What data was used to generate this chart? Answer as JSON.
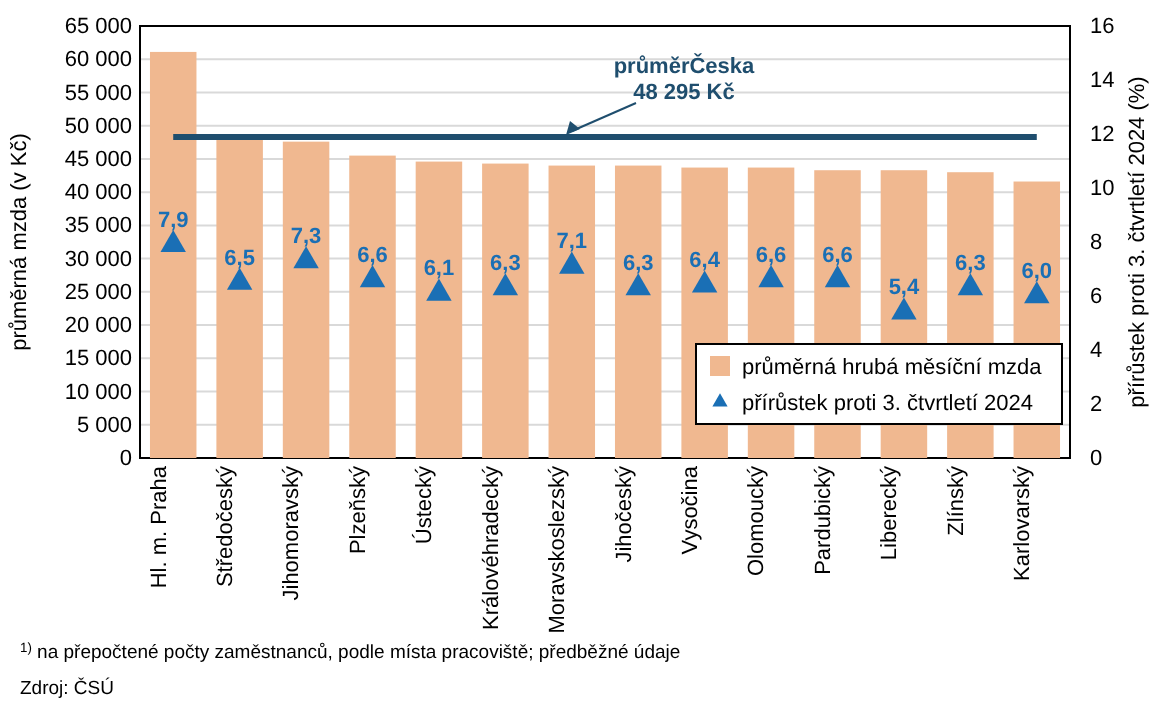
{
  "chart_data": {
    "type": "bar",
    "ylabel": "průměrná mzda (v Kč)",
    "y2label": "přírůstek proti 3. čtvrtletí 2024 (%)",
    "categories": [
      "Hl. m. Praha",
      "Středočeský",
      "Jihomoravský",
      "Plzeňský",
      "Ústecký",
      "Královéhradecký",
      "Moravskoslezský",
      "Jihočeský",
      "Vysočina",
      "Olomoucký",
      "Pardubický",
      "Liberecký",
      "Zlínský",
      "Karlovarský"
    ],
    "series": [
      {
        "name": "průměrná hrubá měsíční mzda",
        "color": "#f0b890",
        "values": [
          61100,
          48400,
          47600,
          45500,
          44600,
          44300,
          44000,
          44000,
          43700,
          43700,
          43300,
          43300,
          43000,
          41600
        ]
      },
      {
        "name": "přírůstek proti 3. čtvrtletí 2024",
        "type": "scatter",
        "axis": "y2",
        "color": "#1a6fb5",
        "marker": "triangle",
        "data_labels": true,
        "value_labels": [
          "7,9",
          "6,5",
          "7,3",
          "6,6",
          "6,1",
          "6,3",
          "7,1",
          "6,3",
          "6,4",
          "6,6",
          "6,6",
          "5,4",
          "6,3",
          "6,0"
        ],
        "values": [
          7.9,
          6.5,
          7.3,
          6.6,
          6.1,
          6.3,
          7.1,
          6.3,
          6.4,
          6.6,
          6.6,
          5.4,
          6.3,
          6.0
        ]
      }
    ],
    "ylim": [
      0,
      65000
    ],
    "yticks": [
      {
        "value": 0,
        "label": "0"
      },
      {
        "value": 5000,
        "label": "5 000"
      },
      {
        "value": 10000,
        "label": "10 000"
      },
      {
        "value": 15000,
        "label": "15 000"
      },
      {
        "value": 20000,
        "label": "20 000"
      },
      {
        "value": 25000,
        "label": "25 000"
      },
      {
        "value": 30000,
        "label": "30 000"
      },
      {
        "value": 35000,
        "label": "35 000"
      },
      {
        "value": 40000,
        "label": "40 000"
      },
      {
        "value": 45000,
        "label": "45 000"
      },
      {
        "value": 50000,
        "label": "50 000"
      },
      {
        "value": 55000,
        "label": "55 000"
      },
      {
        "value": 60000,
        "label": "60 000"
      },
      {
        "value": 65000,
        "label": "65 000"
      }
    ],
    "y2lim": [
      0,
      16
    ],
    "y2ticks": [
      0,
      2,
      4,
      6,
      8,
      10,
      12,
      14,
      16
    ],
    "ref_lines": [
      {
        "axis": "y",
        "value": 48295,
        "label": "průměrČeska\n48 295 Kč",
        "color": "#1f4e6e"
      }
    ],
    "grid": "y",
    "legend": "bottom right",
    "annotations": [
      "$^{1)}$ na přepočtené počty zaměstnanců, podle místa pracoviště; předběžné údaje",
      "Zdroj: ČSÚ"
    ]
  }
}
